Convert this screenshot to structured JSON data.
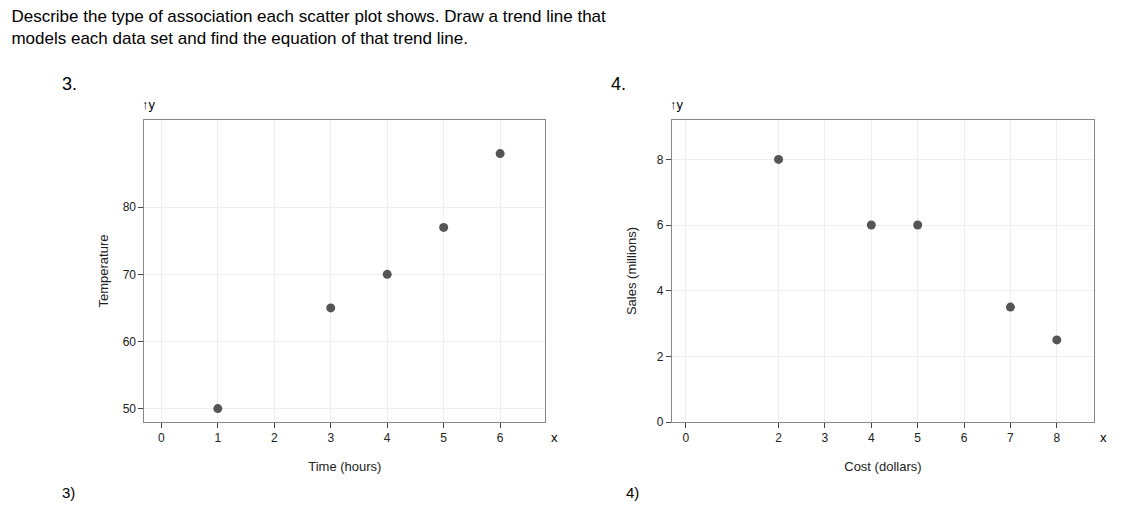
{
  "chart_data": [
    {
      "type": "scatter",
      "title": "Describe the type of association each scatter plot shows. Draw a trend line that",
      "subtitle": "models each data set and find the equation of that trend line.",
      "x": [
        1,
        3,
        4,
        5,
        6
      ],
      "values": [
        50,
        65,
        70,
        77,
        88
      ],
      "x_label": "Time (hours)",
      "y_label": "Temperature",
      "xlim": [
        -0.3,
        6.8
      ],
      "ylim": [
        48,
        93
      ],
      "xticks": [
        0,
        1,
        2,
        3,
        4,
        5,
        6
      ],
      "yticks": [
        50,
        60,
        70,
        80
      ],
      "color": "#555555",
      "marker": "circle",
      "grid": true,
      "annotations": [
        "3.",
        "3)",
        "↑y",
        "x"
      ]
    },
    {
      "type": "scatter",
      "x": [
        2,
        4,
        5,
        7,
        8
      ],
      "values": [
        8,
        6,
        6,
        3.5,
        2.5
      ],
      "x_label": "Cost (dollars)",
      "y_label": "Sales (millions)",
      "xlim": [
        -0.3,
        8.8
      ],
      "ylim": [
        0,
        9.2
      ],
      "xticks": [
        0,
        2,
        3,
        4,
        5,
        6,
        7,
        8
      ],
      "yticks": [
        0,
        2,
        4,
        6,
        8
      ],
      "color": "#555555",
      "marker": "circle",
      "grid": true,
      "annotations": [
        "4.",
        "4)",
        "↑y",
        "x"
      ]
    }
  ]
}
